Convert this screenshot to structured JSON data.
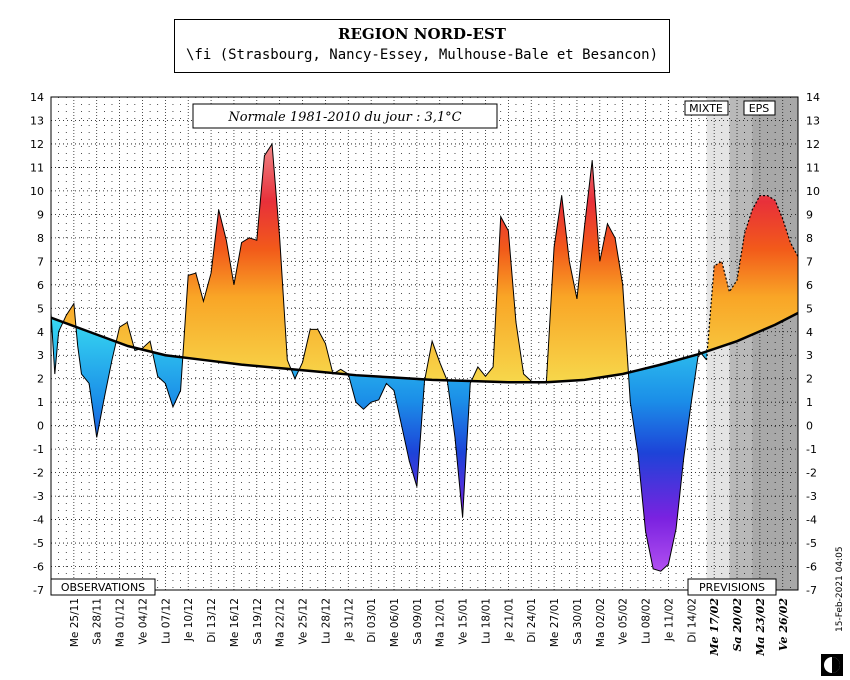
{
  "title": "REGION NORD-EST",
  "subtitle": "\\fi (Strasbourg, Nancy-Essey, Mulhouse-Bale et Besancon)",
  "normale_label": "Normale 1981-2010 du jour : 3,1°C",
  "observations_label": "OBSERVATIONS",
  "previsions_label": "PREVISIONS",
  "mixte_label": "MIXTE",
  "eps_label": "EPS",
  "timestamp": "15-Feb-2021 04:05",
  "chart_data": {
    "type": "area",
    "title": "REGION NORD-EST",
    "ylim": [
      -7,
      14
    ],
    "yticks": [
      -7,
      -6,
      -5,
      -4,
      -3,
      -2,
      -1,
      0,
      1,
      2,
      3,
      4,
      5,
      6,
      7,
      8,
      9,
      10,
      11,
      12,
      13,
      14
    ],
    "x_day_range": [
      0,
      92
    ],
    "date_labels": [
      {
        "day": 3,
        "label": "Me 25/11",
        "forecast": false
      },
      {
        "day": 6,
        "label": "Sa 28/11",
        "forecast": false
      },
      {
        "day": 9,
        "label": "Ma 01/12",
        "forecast": false
      },
      {
        "day": 12,
        "label": "Ve 04/12",
        "forecast": false
      },
      {
        "day": 15,
        "label": "Lu 07/12",
        "forecast": false
      },
      {
        "day": 18,
        "label": "Je 10/12",
        "forecast": false
      },
      {
        "day": 21,
        "label": "Di 13/12",
        "forecast": false
      },
      {
        "day": 24,
        "label": "Me 16/12",
        "forecast": false
      },
      {
        "day": 27,
        "label": "Sa 19/12",
        "forecast": false
      },
      {
        "day": 30,
        "label": "Ma 22/12",
        "forecast": false
      },
      {
        "day": 33,
        "label": "Ve 25/12",
        "forecast": false
      },
      {
        "day": 36,
        "label": "Lu 28/12",
        "forecast": false
      },
      {
        "day": 39,
        "label": "Je 31/12",
        "forecast": false
      },
      {
        "day": 42,
        "label": "Di 03/01",
        "forecast": false
      },
      {
        "day": 45,
        "label": "Me 06/01",
        "forecast": false
      },
      {
        "day": 48,
        "label": "Sa 09/01",
        "forecast": false
      },
      {
        "day": 51,
        "label": "Ma 12/01",
        "forecast": false
      },
      {
        "day": 54,
        "label": "Ve 15/01",
        "forecast": false
      },
      {
        "day": 57,
        "label": "Lu 18/01",
        "forecast": false
      },
      {
        "day": 60,
        "label": "Je 21/01",
        "forecast": false
      },
      {
        "day": 63,
        "label": "Di 24/01",
        "forecast": false
      },
      {
        "day": 66,
        "label": "Me 27/01",
        "forecast": false
      },
      {
        "day": 69,
        "label": "Sa 30/01",
        "forecast": false
      },
      {
        "day": 72,
        "label": "Ma 02/02",
        "forecast": false
      },
      {
        "day": 75,
        "label": "Ve 05/02",
        "forecast": false
      },
      {
        "day": 78,
        "label": "Lu 08/02",
        "forecast": false
      },
      {
        "day": 81,
        "label": "Je 11/02",
        "forecast": false
      },
      {
        "day": 84,
        "label": "Di 14/02",
        "forecast": false
      },
      {
        "day": 87,
        "label": "Me 17/02",
        "forecast": true
      },
      {
        "day": 90,
        "label": "Sa 20/02",
        "forecast": true
      },
      {
        "day": 93,
        "label": "Ma 23/02",
        "forecast": true
      },
      {
        "day": 96,
        "label": "Ve 26/02",
        "forecast": true
      }
    ],
    "forecast_start_day": 86,
    "mixte_start_day": 86,
    "eps_start_day": 89,
    "x_max_day": 98,
    "observed": [
      [
        0,
        4.8
      ],
      [
        0.5,
        2.2
      ],
      [
        1,
        4.0
      ],
      [
        2,
        4.7
      ],
      [
        3,
        5.2
      ],
      [
        3.5,
        3.4
      ],
      [
        4,
        2.2
      ],
      [
        5,
        1.8
      ],
      [
        6,
        -0.5
      ],
      [
        7,
        1.2
      ],
      [
        8,
        2.8
      ],
      [
        9,
        4.2
      ],
      [
        10,
        4.4
      ],
      [
        11,
        3.2
      ],
      [
        12,
        3.3
      ],
      [
        13,
        3.6
      ],
      [
        14,
        2.1
      ],
      [
        15,
        1.8
      ],
      [
        16,
        0.8
      ],
      [
        17,
        1.5
      ],
      [
        18,
        6.4
      ],
      [
        19,
        6.5
      ],
      [
        20,
        5.3
      ],
      [
        21,
        6.5
      ],
      [
        22,
        9.2
      ],
      [
        23,
        7.9
      ],
      [
        24,
        6.0
      ],
      [
        25,
        7.8
      ],
      [
        26,
        8.0
      ],
      [
        27,
        7.9
      ],
      [
        28,
        11.5
      ],
      [
        29,
        12.0
      ],
      [
        30,
        8.0
      ],
      [
        31,
        2.8
      ],
      [
        32,
        2.0
      ],
      [
        33,
        2.7
      ],
      [
        34,
        4.1
      ],
      [
        35,
        4.1
      ],
      [
        36,
        3.5
      ],
      [
        37,
        2.2
      ],
      [
        38,
        2.4
      ],
      [
        39,
        2.2
      ],
      [
        40,
        1.0
      ],
      [
        41,
        0.7
      ],
      [
        42,
        1.0
      ],
      [
        43,
        1.1
      ],
      [
        44,
        1.8
      ],
      [
        45,
        1.5
      ],
      [
        46,
        0.0
      ],
      [
        47,
        -1.5
      ],
      [
        48,
        -2.6
      ],
      [
        49,
        1.9
      ],
      [
        50,
        3.6
      ],
      [
        51,
        2.7
      ],
      [
        52,
        1.9
      ],
      [
        53,
        -0.5
      ],
      [
        54,
        -3.9
      ],
      [
        55,
        1.8
      ],
      [
        56,
        2.5
      ],
      [
        57,
        2.1
      ],
      [
        58,
        2.5
      ],
      [
        59,
        8.9
      ],
      [
        60,
        8.3
      ],
      [
        61,
        4.4
      ],
      [
        62,
        2.2
      ],
      [
        63,
        1.9
      ],
      [
        64,
        1.8
      ],
      [
        65,
        1.9
      ],
      [
        66,
        7.6
      ],
      [
        67,
        9.8
      ],
      [
        68,
        7.0
      ],
      [
        69,
        5.4
      ],
      [
        70,
        8.5
      ],
      [
        71,
        11.3
      ],
      [
        72,
        7.0
      ],
      [
        73,
        8.6
      ],
      [
        74,
        8.0
      ],
      [
        75,
        6.0
      ],
      [
        76,
        1.0
      ],
      [
        77,
        -1.2
      ],
      [
        78,
        -4.5
      ],
      [
        79,
        -6.1
      ],
      [
        80,
        -6.2
      ],
      [
        81,
        -5.9
      ],
      [
        82,
        -4.4
      ],
      [
        83,
        -1.4
      ],
      [
        84,
        1.0
      ],
      [
        85,
        3.2
      ],
      [
        86,
        2.8
      ]
    ],
    "forecast": [
      [
        86,
        2.8
      ],
      [
        87,
        6.8
      ],
      [
        88,
        7.0
      ],
      [
        89,
        5.7
      ],
      [
        90,
        6.2
      ],
      [
        91,
        8.2
      ],
      [
        92,
        9.2
      ],
      [
        93,
        9.8
      ],
      [
        94,
        9.8
      ],
      [
        95,
        9.6
      ],
      [
        96,
        8.8
      ],
      [
        97,
        7.8
      ],
      [
        98,
        7.2
      ]
    ],
    "normale": [
      [
        0,
        4.6
      ],
      [
        5,
        4.0
      ],
      [
        10,
        3.4
      ],
      [
        15,
        3.0
      ],
      [
        20,
        2.8
      ],
      [
        25,
        2.6
      ],
      [
        30,
        2.45
      ],
      [
        35,
        2.3
      ],
      [
        40,
        2.15
      ],
      [
        45,
        2.05
      ],
      [
        50,
        1.95
      ],
      [
        55,
        1.9
      ],
      [
        60,
        1.85
      ],
      [
        65,
        1.85
      ],
      [
        70,
        1.95
      ],
      [
        75,
        2.2
      ],
      [
        80,
        2.6
      ],
      [
        85,
        3.05
      ],
      [
        90,
        3.6
      ],
      [
        95,
        4.3
      ],
      [
        98,
        4.8
      ]
    ]
  }
}
